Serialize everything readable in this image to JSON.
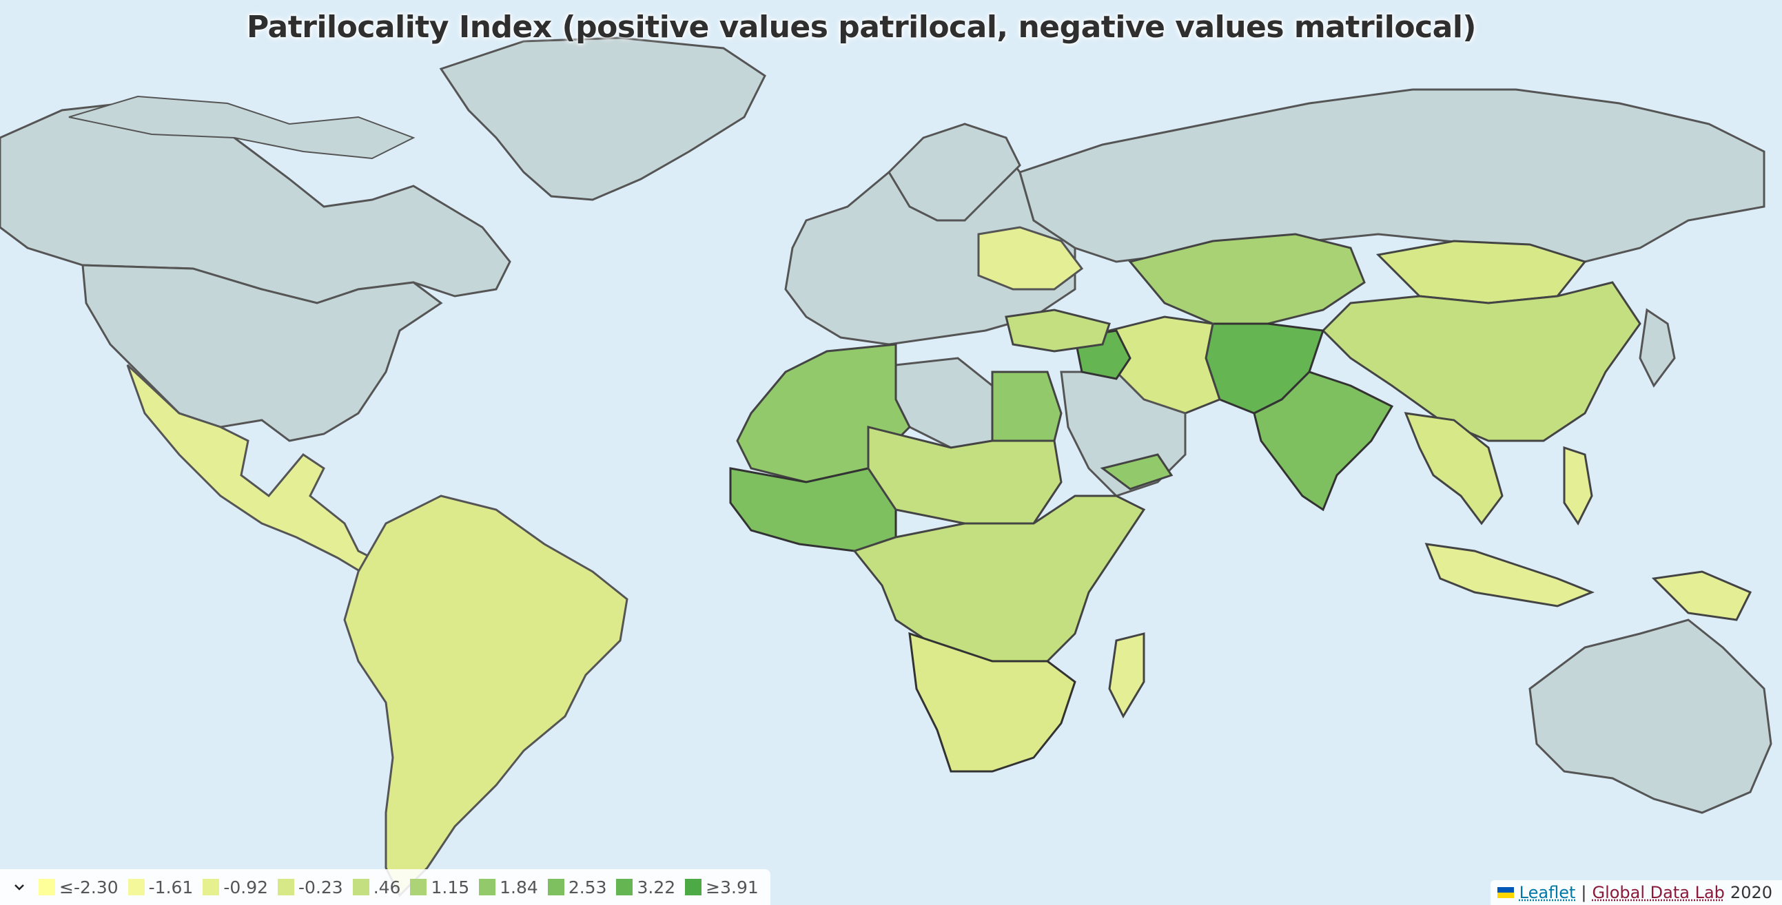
{
  "title": "Patrilocality Index (positive values patrilocal, negative values matrilocal)",
  "colors": {
    "ocean": "#dcedf8",
    "nodata": "#c5d6d8",
    "border": "#4a4a4a"
  },
  "legend": {
    "items": [
      {
        "label": "≤-2.30",
        "color": "#ffff99"
      },
      {
        "label": "-1.61",
        "color": "#f4f79a"
      },
      {
        "label": "-0.92",
        "color": "#e6f08e"
      },
      {
        "label": "-0.23",
        "color": "#d6e888"
      },
      {
        "label": ".46",
        "color": "#c4df80"
      },
      {
        "label": "1.15",
        "color": "#acd477"
      },
      {
        "label": "1.84",
        "color": "#92c96a"
      },
      {
        "label": "2.53",
        "color": "#7ec05f"
      },
      {
        "label": "3.22",
        "color": "#66b553"
      },
      {
        "label": "≥3.91",
        "color": "#4da846"
      }
    ]
  },
  "attribution": {
    "leaflet": "Leaflet",
    "separator": "|",
    "gdl": "Global Data Lab",
    "year": "2020"
  }
}
